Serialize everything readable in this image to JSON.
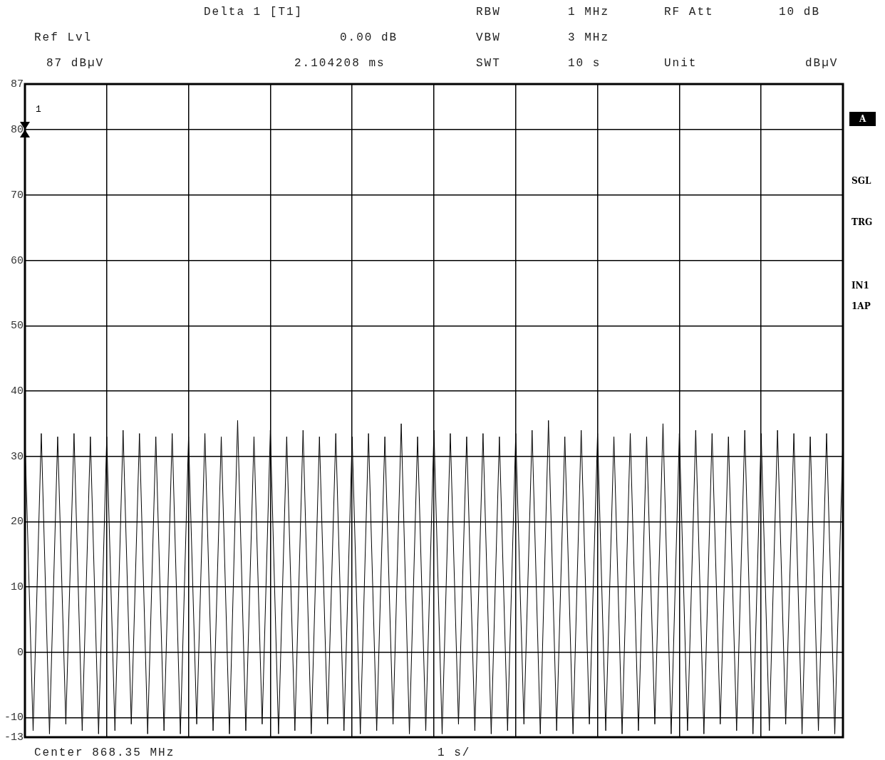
{
  "chart_data": {
    "type": "line",
    "ylim": [
      -13,
      87
    ],
    "yticks": [
      -13,
      -10,
      0,
      10,
      20,
      30,
      40,
      50,
      60,
      70,
      80,
      87
    ],
    "categories": [
      null,
      null,
      null,
      null,
      null,
      null,
      null,
      null,
      null,
      null,
      null,
      null,
      null,
      null,
      null,
      null,
      null,
      null,
      null,
      null,
      null,
      null,
      null,
      null,
      null,
      null,
      null,
      null,
      null,
      null,
      null,
      null,
      null,
      null,
      null,
      null,
      null,
      null,
      null,
      null,
      null,
      null,
      null,
      null,
      null,
      null,
      null,
      null,
      null,
      null,
      null,
      null,
      null,
      null,
      null,
      null,
      null,
      null,
      null,
      null,
      null,
      null,
      null,
      null,
      null,
      null,
      null,
      null,
      null,
      null,
      null,
      null,
      null,
      null,
      null,
      null,
      null,
      null,
      null,
      null,
      null,
      null,
      null,
      null,
      null,
      null,
      null,
      null,
      null,
      null,
      null,
      null,
      null,
      null,
      null,
      null,
      null,
      null,
      null,
      null,
      null
    ],
    "tick_labels": "y",
    "grid": true,
    "legend": false,
    "marker": "none",
    "line_style": "solid",
    "annotations": [
      "Delta 1 [T1]",
      "RBW",
      "1 MHz",
      "RF Att",
      "10 dB",
      "Ref Lvl",
      "0.00 dB",
      "VBW",
      "3 MHz",
      "87 dBµV",
      "2.104208 ms",
      "SWT",
      "10 s",
      "Unit",
      "dBµV",
      "A",
      "SGL",
      "TRG",
      "IN1",
      "1AP",
      "Center 868.35 MHz",
      "1 s/",
      "1"
    ],
    "series": [
      {
        "color": "#000000",
        "values": [
          33,
          -12,
          33.5,
          -12.5,
          33,
          -11,
          33.5,
          -12,
          33,
          -12.5,
          33,
          -12,
          34,
          -11,
          33.5,
          -12.5,
          33,
          -12,
          33.5,
          -12.5,
          33,
          -11,
          33.5,
          -12,
          33,
          -12.5,
          35.5,
          -12,
          33,
          -11,
          34,
          -12.5,
          33,
          -12,
          34,
          -12.5,
          33,
          -11,
          33.5,
          -12,
          33,
          -12.5,
          33.5,
          -12,
          33,
          -11,
          35,
          -12.5,
          33,
          -12,
          34,
          -12.5,
          33.5,
          -11,
          33,
          -12,
          33.5,
          -12.5,
          33,
          -12,
          33.5,
          -11,
          34,
          -12.5,
          35.5,
          -12,
          33,
          -12.5,
          34,
          -11,
          33.5,
          -12,
          33,
          -12.5,
          33.5,
          -12,
          33,
          -11,
          35,
          -12.5,
          33.5,
          -12,
          34,
          -12.5,
          33.5,
          -11,
          33,
          -12,
          34,
          -12.5,
          33.5,
          -12,
          34,
          -11,
          33.5,
          -12.5,
          33,
          -12,
          33.5,
          -12.5,
          33
        ]
      }
    ]
  }
}
